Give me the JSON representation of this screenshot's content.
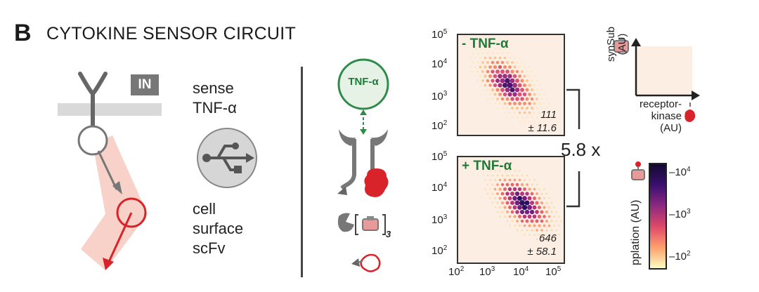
{
  "panel": {
    "letter": "B",
    "title": "CYTOKINE SENSOR CIRCUIT"
  },
  "left_diagram": {
    "in_badge": "IN",
    "sense_line1": "sense",
    "sense_line2": "TNF-α",
    "usb_icon": "usb-icon",
    "cell_lines": [
      "cell",
      "surface",
      "scFv"
    ]
  },
  "mechanism": {
    "ligand_label": "TNF-α",
    "subscript": "3"
  },
  "plots": {
    "top": {
      "condition": "- TNF-α",
      "value": "111",
      "error": "± 11.6"
    },
    "bottom": {
      "condition": "+ TNF-α",
      "value": "646",
      "error": "± 58.1"
    },
    "y_ticks_top": [
      "10",
      "10",
      "10",
      "10"
    ],
    "y_exp_top": [
      "5",
      "4",
      "3",
      "2"
    ],
    "x_ticks": [
      "10",
      "10",
      "10",
      "10"
    ],
    "x_exp": [
      "2",
      "3",
      "4",
      "5"
    ],
    "fold_change": "5.8 x"
  },
  "axes_key": {
    "y_label": "synSub\n(AU)",
    "y_label_line1": "synSub",
    "y_label_line2": "(AU)",
    "x_label_line1": "receptor-",
    "x_label_line2": "kinase",
    "x_label_line3": "(AU)"
  },
  "colorbar": {
    "label": "pplation (AU)",
    "ticks": [
      "10",
      "10",
      "10"
    ],
    "exps": [
      "4",
      "3",
      "2"
    ]
  },
  "colors": {
    "green": "#1f7a3a",
    "red": "#d8232a",
    "gray": "#8a8a8a",
    "pink": "#f7c9c0"
  }
}
